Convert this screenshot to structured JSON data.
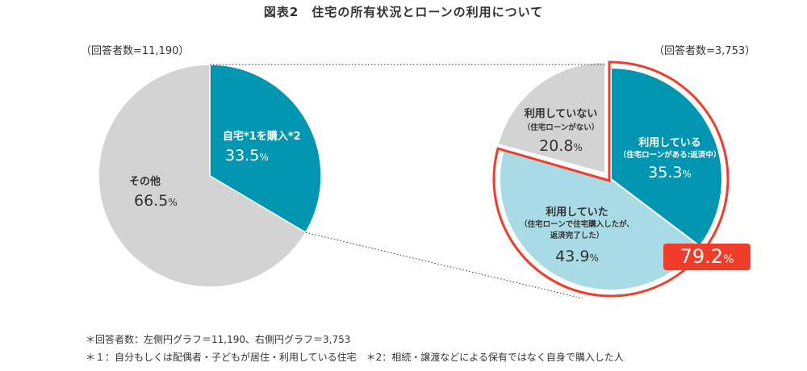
{
  "title": "図表2　住宅の所有状況とローンの利用について",
  "chart_data": [
    {
      "type": "pie",
      "respondents_label": "（回答者数=11,190）",
      "start": "12 o'clock",
      "direction": "clockwise",
      "slices": [
        {
          "name": "自宅*1を購入*2",
          "value": 33.5,
          "display": "33.5",
          "color": "#0095b0"
        },
        {
          "name": "その他",
          "value": 66.5,
          "display": "66.5",
          "color": "#d3d3d3"
        }
      ]
    },
    {
      "type": "pie",
      "respondents_label": "（回答者数=3,753）",
      "start": "12 o'clock",
      "direction": "clockwise",
      "slices": [
        {
          "name": "利用している",
          "note": "（住宅ローンがある:返済中）",
          "value": 35.3,
          "display": "35.3",
          "color": "#0095b0"
        },
        {
          "name": "利用していた",
          "note": "（住宅ローンで住宅購入したが、",
          "note2": "返済完了した）",
          "value": 43.9,
          "display": "43.9",
          "color": "#a8dbe6"
        },
        {
          "name": "利用していない",
          "note": "（住宅ローンがない）",
          "value": 20.8,
          "display": "20.8",
          "color": "#d3d3d3"
        }
      ],
      "highlight": {
        "value": "79.2",
        "color": "#f03c2a"
      }
    }
  ],
  "unit": "%",
  "notes": [
    "＊回答者数：左側円グラフ＝11,190、右側円グラフ＝3,753",
    "＊１：自分もしくは配偶者・子どもが居住・利用している住宅　＊2：相続・譲渡などによる保有ではなく自身で購入した人"
  ]
}
